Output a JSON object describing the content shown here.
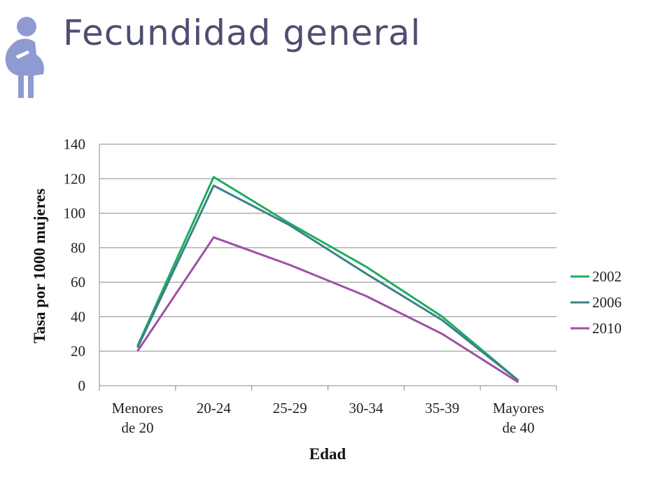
{
  "slide": {
    "title": "Fecundidad general",
    "icon": "pregnant-woman-icon",
    "icon_color": "#8e9ad0"
  },
  "chart_data": {
    "type": "line",
    "title": "",
    "xlabel": "Edad",
    "ylabel": "Tasa por 1000 mujeres",
    "categories": [
      [
        "Menores",
        "de 20"
      ],
      [
        "20-24"
      ],
      [
        "25-29"
      ],
      [
        "30-34"
      ],
      [
        "35-39"
      ],
      [
        "Mayores",
        "de 40"
      ]
    ],
    "ylim": [
      0,
      140
    ],
    "yticks": [
      "0",
      "20",
      "40",
      "60",
      "80",
      "100",
      "120",
      "140"
    ],
    "grid": true,
    "legend_position": "right",
    "series": [
      {
        "name": "2002",
        "color": "#1aaf5d",
        "values": [
          23,
          121,
          94,
          69,
          40,
          3
        ]
      },
      {
        "name": "2006",
        "color": "#3f7f8a",
        "values": [
          22,
          116,
          93,
          65,
          38,
          3
        ]
      },
      {
        "name": "2010",
        "color": "#9e4fa6",
        "values": [
          20,
          86,
          70,
          52,
          30,
          2
        ]
      }
    ]
  }
}
